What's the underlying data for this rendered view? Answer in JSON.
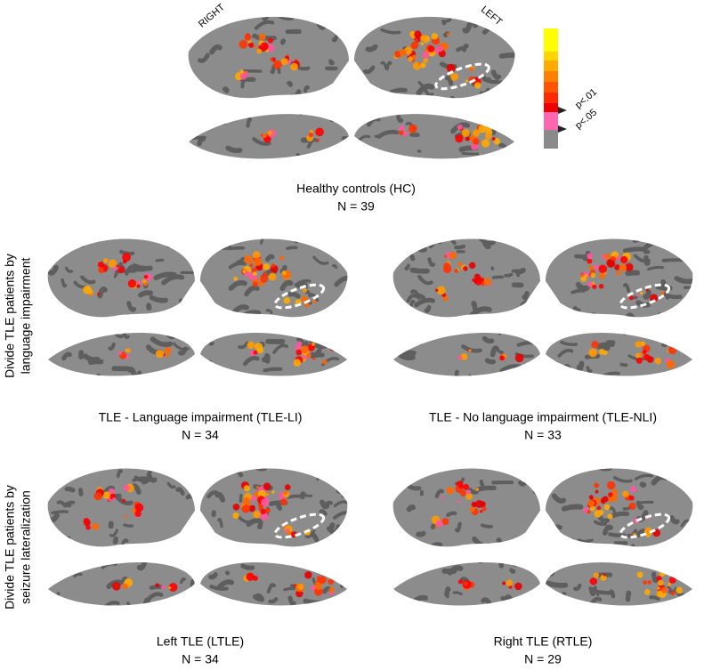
{
  "header": {
    "right_label": "RIGHT",
    "left_label": "LEFT"
  },
  "colorbar": {
    "labels": [
      "p<.01",
      "p<.05"
    ]
  },
  "panels": [
    {
      "caption": "Healthy controls (HC)",
      "n": "N = 39"
    },
    {
      "caption": "TLE - Language impairment (TLE-LI)",
      "n": "N = 34"
    },
    {
      "caption": "TLE - No language impairment (TLE-NLI)",
      "n": "N = 33"
    },
    {
      "caption": "Left TLE (LTLE)",
      "n": "N = 34"
    },
    {
      "caption": "Right TLE (RTLE)",
      "n": "N = 29"
    }
  ],
  "row_labels": [
    [
      "Divide TLE patients by",
      "language impairment"
    ],
    [
      "Divide TLE patients by",
      "seizure lateralization"
    ]
  ]
}
